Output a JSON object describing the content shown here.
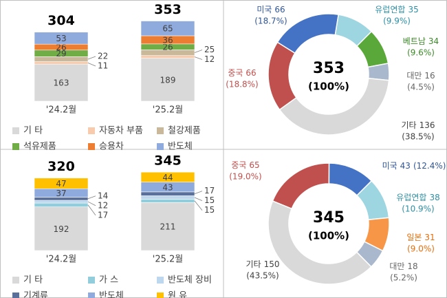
{
  "chart_data": [
    {
      "type": "stacked_bar",
      "categories": [
        "'24.2월",
        "'25.2월"
      ],
      "totals": [
        304,
        353
      ],
      "series": [
        {
          "name": "기 타",
          "color": "#d9d9d9",
          "values": [
            163,
            189
          ]
        },
        {
          "name": "자동차 부품",
          "color": "#f8cbad",
          "values": [
            11,
            12
          ]
        },
        {
          "name": "철강제품",
          "color": "#c9b99a",
          "values": [
            22,
            25
          ]
        },
        {
          "name": "석유제품",
          "color": "#70ad47",
          "values": [
            29,
            26
          ]
        },
        {
          "name": "승용차",
          "color": "#ed7d31",
          "values": [
            26,
            36
          ]
        },
        {
          "name": "반도체",
          "color": "#8faadc",
          "values": [
            53,
            65
          ]
        }
      ]
    },
    {
      "type": "donut",
      "total_label": "353",
      "total_share_label": "(100%)",
      "categories": [
        "미국",
        "유럽연합",
        "베트남",
        "대만",
        "기타",
        "중국"
      ],
      "amounts": [
        66,
        35,
        34,
        16,
        136,
        66
      ],
      "values": [
        18.7,
        9.9,
        9.6,
        4.5,
        38.5,
        18.8
      ],
      "value_labels": [
        "(18.7%)",
        "(9.9%)",
        "(9.6%)",
        "(4.5%)",
        "(38.5%)",
        "(18.8%)"
      ],
      "colors": [
        "#4472c4",
        "#9dd5e0",
        "#5aa83a",
        "#a9b8cc",
        "#d9d9d9",
        "#c0504d"
      ],
      "label_colors": [
        "#2f5597",
        "#2e8fa3",
        "#3c8a28",
        "#666666",
        "#404040",
        "#c0504d"
      ]
    },
    {
      "type": "stacked_bar",
      "categories": [
        "'24.2월",
        "'25.2월"
      ],
      "totals": [
        320,
        345
      ],
      "series": [
        {
          "name": "기 타",
          "color": "#d9d9d9",
          "values": [
            192,
            211
          ]
        },
        {
          "name": "가 스",
          "color": "#92cddc",
          "values": [
            17,
            15
          ]
        },
        {
          "name": "반도체 장비",
          "color": "#bdd7ee",
          "values": [
            12,
            15
          ]
        },
        {
          "name": "기계류",
          "color": "#5a6f9a",
          "values": [
            14,
            17
          ]
        },
        {
          "name": "반도체",
          "color": "#8faadc",
          "values": [
            37,
            43
          ]
        },
        {
          "name": "원 유",
          "color": "#ffc000",
          "values": [
            47,
            44
          ]
        }
      ]
    },
    {
      "type": "donut",
      "total_label": "345",
      "total_share_label": "(100%)",
      "categories": [
        "중국",
        "미국",
        "유럽연합",
        "일본",
        "대만",
        "기타"
      ],
      "amounts": [
        65,
        43,
        38,
        31,
        18,
        150
      ],
      "values": [
        19.0,
        12.4,
        10.9,
        9.0,
        5.2,
        43.5
      ],
      "value_labels": [
        "(19.0%)",
        "(12.4%)",
        "(10.9%)",
        "(9.0%)",
        "(5.2%)",
        "(43.5%)"
      ],
      "colors": [
        "#c0504d",
        "#4472c4",
        "#9dd5e0",
        "#f79646",
        "#a9b8cc",
        "#d9d9d9"
      ],
      "label_colors": [
        "#c0504d",
        "#2f5597",
        "#2e8fa3",
        "#e46c0a",
        "#666666",
        "#404040"
      ]
    }
  ]
}
